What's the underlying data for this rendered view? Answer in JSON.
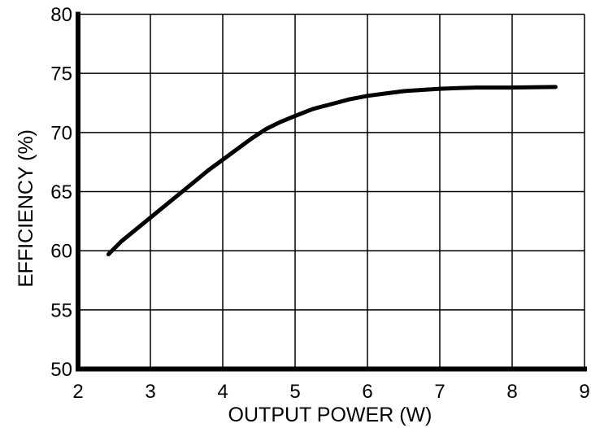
{
  "chart_data": {
    "type": "line",
    "title": "",
    "xlabel": "OUTPUT POWER (W)",
    "ylabel": "EFFICIENCY (%)",
    "xlim": [
      2,
      9
    ],
    "ylim": [
      50,
      80
    ],
    "xticks": [
      2,
      3,
      4,
      5,
      6,
      7,
      8,
      9
    ],
    "yticks": [
      50,
      55,
      60,
      65,
      70,
      75,
      80
    ],
    "grid": true,
    "legend": false,
    "series": [
      {
        "name": "efficiency-curve",
        "color": "#000000",
        "line_width": 5,
        "points": [
          [
            2.42,
            59.7
          ],
          [
            2.6,
            60.8
          ],
          [
            2.8,
            61.8
          ],
          [
            3.0,
            62.8
          ],
          [
            3.2,
            63.8
          ],
          [
            3.4,
            64.8
          ],
          [
            3.6,
            65.8
          ],
          [
            3.8,
            66.8
          ],
          [
            4.0,
            67.7
          ],
          [
            4.2,
            68.6
          ],
          [
            4.4,
            69.5
          ],
          [
            4.6,
            70.3
          ],
          [
            4.8,
            70.9
          ],
          [
            5.0,
            71.4
          ],
          [
            5.25,
            72.0
          ],
          [
            5.5,
            72.4
          ],
          [
            5.75,
            72.8
          ],
          [
            6.0,
            73.1
          ],
          [
            6.25,
            73.3
          ],
          [
            6.5,
            73.5
          ],
          [
            6.75,
            73.6
          ],
          [
            7.0,
            73.7
          ],
          [
            7.25,
            73.75
          ],
          [
            7.5,
            73.8
          ],
          [
            8.0,
            73.8
          ],
          [
            8.6,
            73.85
          ]
        ]
      }
    ]
  },
  "style": {
    "background": "#ffffff",
    "axis_color": "#000000",
    "grid_color": "#000000",
    "line_color": "#000000",
    "text_color": "#000000"
  }
}
